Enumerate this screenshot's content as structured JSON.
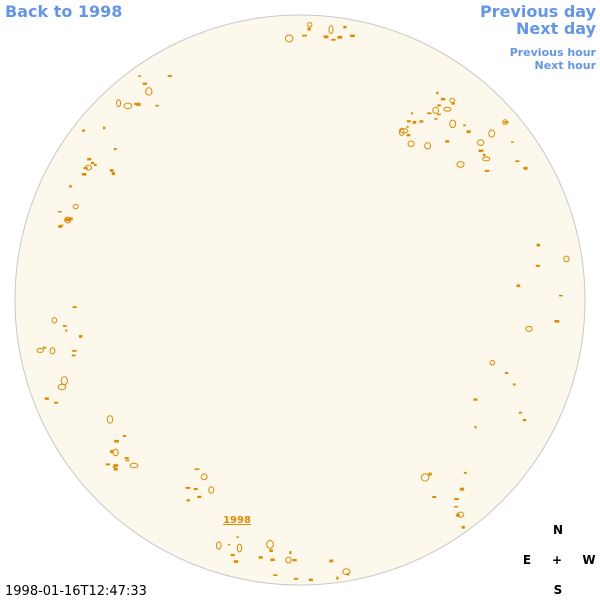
{
  "navigation": {
    "back_to_year": "Back to 1998",
    "previous_day": "Previous day",
    "next_day": "Next day",
    "previous_hour": "Previous hour",
    "next_hour": "Next hour"
  },
  "disk_label": "1998",
  "timestamp": "1998-01-16T12:47:33",
  "compass": {
    "north": "N",
    "east": "E",
    "center": "+",
    "west": "W",
    "south": "S"
  }
}
